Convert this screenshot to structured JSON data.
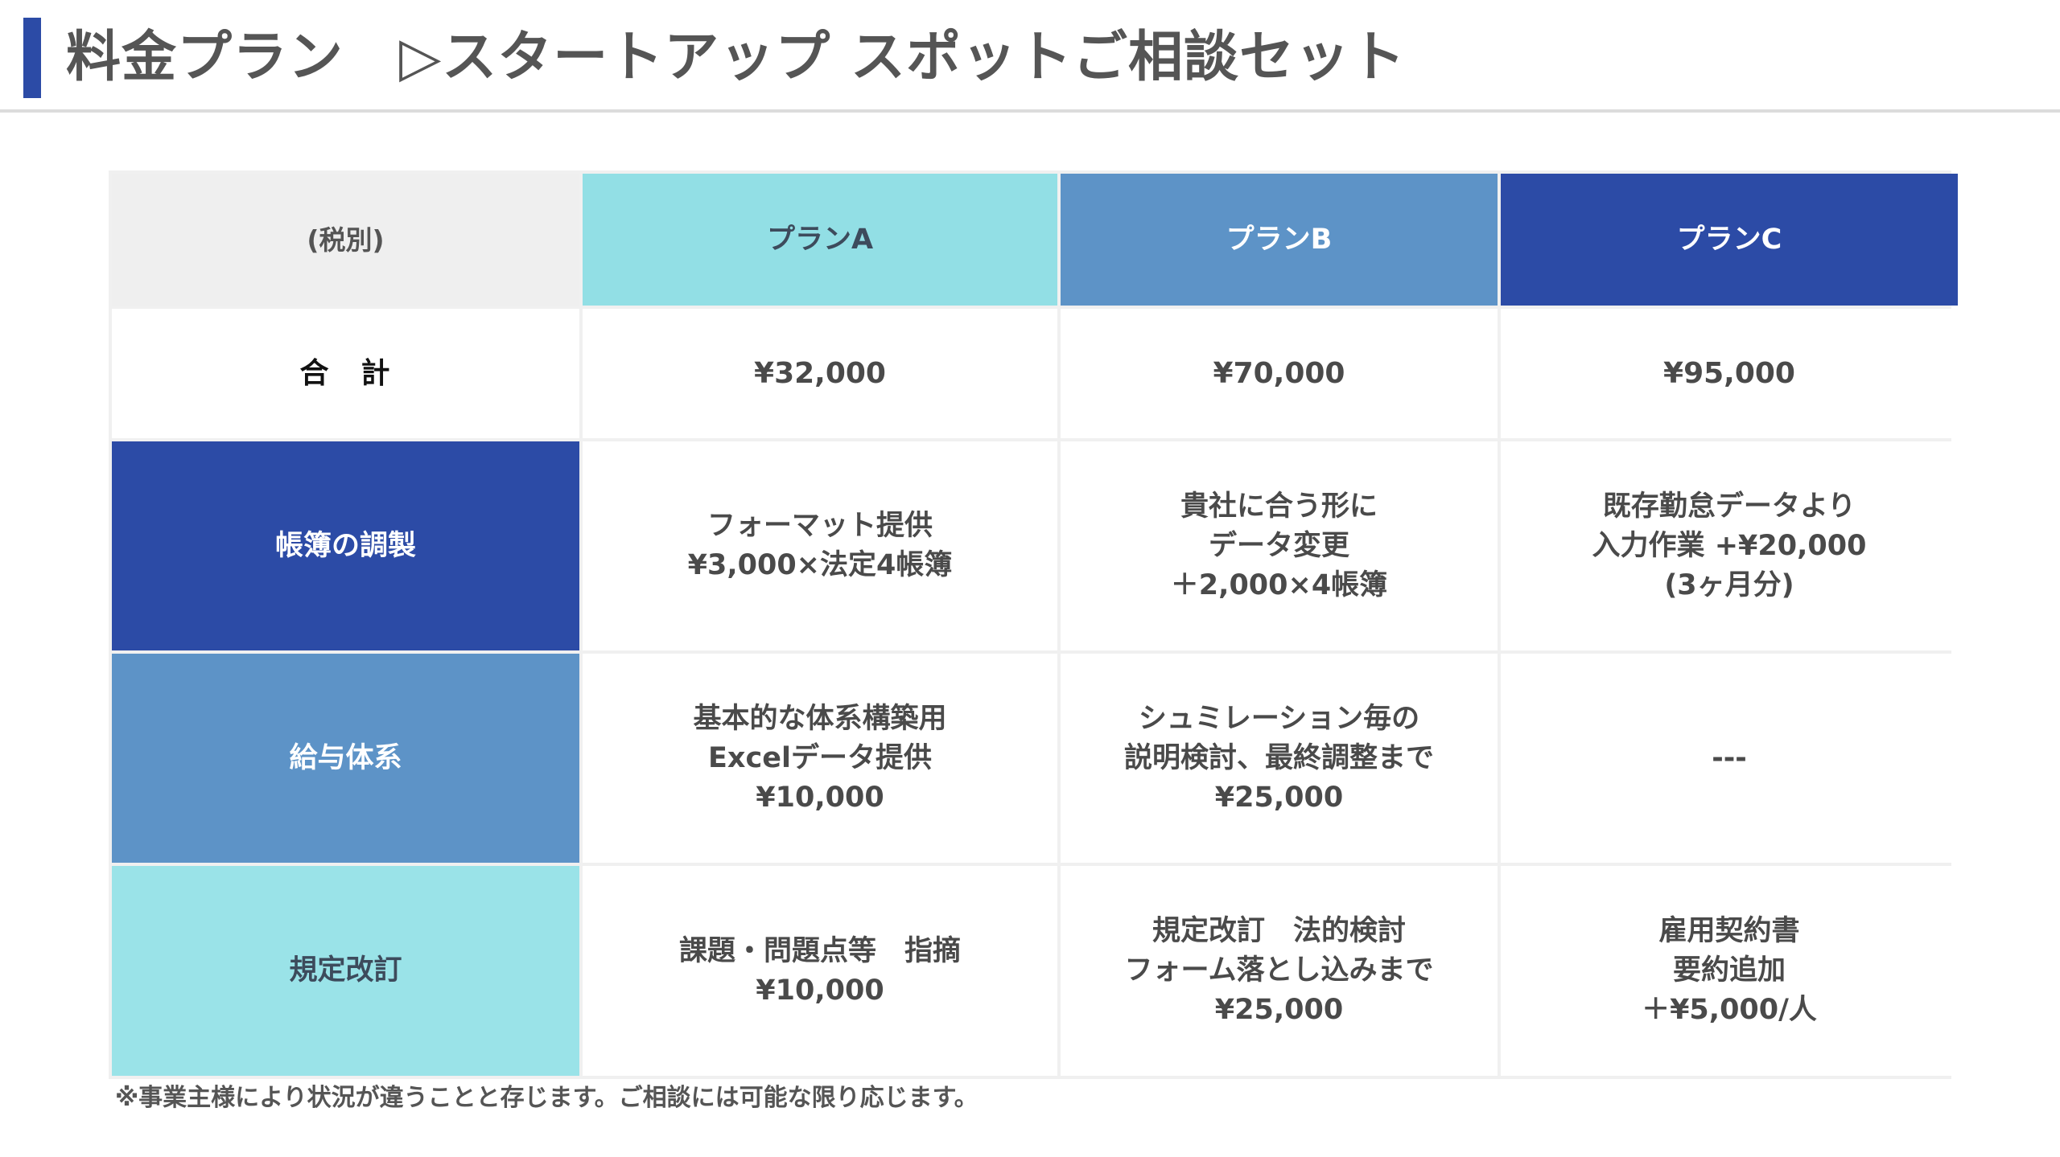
{
  "header": {
    "title": "料金プラン　▷スタートアップ スポットご相談セット",
    "accent_color": "#2c4ba6"
  },
  "table": {
    "corner_label": "(税別)",
    "plans": [
      "プランA",
      "プランB",
      "プランC"
    ],
    "plan_colors": [
      "#92dfe5",
      "#5d93c7",
      "#2c4ba6"
    ],
    "rows": [
      {
        "label": "合　計",
        "cells": [
          [
            "¥32,000"
          ],
          [
            "¥70,000"
          ],
          [
            "¥95,000"
          ]
        ]
      },
      {
        "label": "帳簿の調製",
        "cells": [
          [
            "フォーマット提供",
            "¥3,000×法定4帳簿"
          ],
          [
            "貴社に合う形に",
            "データ変更",
            "＋2,000×4帳簿"
          ],
          [
            "既存勤怠データより",
            "入力作業 +¥20,000",
            "(3ヶ月分)"
          ]
        ]
      },
      {
        "label": "給与体系",
        "cells": [
          [
            "基本的な体系構築用",
            "Excelデータ提供",
            "¥10,000"
          ],
          [
            "シュミレーション毎の",
            "説明検討、最終調整まで",
            "¥25,000"
          ],
          [
            "---"
          ]
        ]
      },
      {
        "label": "規定改訂",
        "cells": [
          [
            "課題・問題点等　指摘",
            "¥10,000"
          ],
          [
            "規定改訂　法的検討",
            "フォーム落とし込みまで",
            "¥25,000"
          ],
          [
            "雇用契約書",
            "要約追加",
            "＋¥5,000/人"
          ]
        ]
      }
    ]
  },
  "footnote": "※事業主様により状況が違うことと存じます。ご相談には可能な限り応じます。"
}
